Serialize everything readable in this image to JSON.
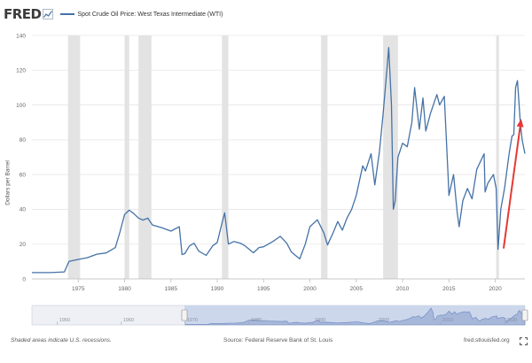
{
  "header": {
    "logo_text": "FRED",
    "legend_label": "Spot Crude Oil Price: West Texas Intermediate (WTI)",
    "series_color": "#4572a7"
  },
  "chart_data": {
    "type": "line",
    "title": "",
    "xlabel": "",
    "ylabel": "Dollars per Barrel",
    "xlim": [
      1970.0,
      2023.2
    ],
    "ylim": [
      0,
      140
    ],
    "y_ticks": [
      0,
      20,
      40,
      60,
      80,
      100,
      120,
      140
    ],
    "x_ticks": [
      1975,
      1980,
      1985,
      1990,
      1995,
      2000,
      2005,
      2010,
      2015,
      2020
    ],
    "grid": true,
    "recessions": [
      [
        1973.9,
        1975.2
      ],
      [
        1980.0,
        1980.5
      ],
      [
        1981.5,
        1982.9
      ],
      [
        1990.5,
        1991.2
      ],
      [
        2001.2,
        2001.9
      ],
      [
        2007.9,
        2009.5
      ],
      [
        2020.1,
        2020.4
      ]
    ],
    "series": [
      {
        "name": "Spot Crude Oil Price: West Texas Intermediate (WTI)",
        "color": "#4572a7",
        "x": [
          1970.0,
          1971.0,
          1972.0,
          1973.5,
          1974.0,
          1975.0,
          1976.0,
          1977.0,
          1978.0,
          1979.0,
          1979.5,
          1980.0,
          1980.5,
          1981.0,
          1981.5,
          1982.0,
          1982.5,
          1983.0,
          1984.0,
          1985.0,
          1985.9,
          1986.2,
          1986.5,
          1987.0,
          1987.5,
          1988.0,
          1988.8,
          1989.5,
          1990.0,
          1990.6,
          1990.8,
          1991.2,
          1991.8,
          1992.5,
          1993.0,
          1993.9,
          1994.5,
          1995.0,
          1996.0,
          1996.8,
          1997.5,
          1998.0,
          1998.9,
          1999.5,
          2000.0,
          2000.8,
          2001.5,
          2001.9,
          2002.5,
          2003.0,
          2003.5,
          2004.0,
          2004.5,
          2005.0,
          2005.7,
          2006.0,
          2006.6,
          2007.0,
          2007.5,
          2007.9,
          2008.3,
          2008.5,
          2008.8,
          2009.0,
          2009.2,
          2009.5,
          2010.0,
          2010.5,
          2011.0,
          2011.3,
          2011.8,
          2012.2,
          2012.5,
          2013.0,
          2013.7,
          2014.0,
          2014.5,
          2014.9,
          2015.0,
          2015.5,
          2015.9,
          2016.1,
          2016.5,
          2017.0,
          2017.5,
          2018.0,
          2018.8,
          2018.9,
          2019.2,
          2019.8,
          2020.1,
          2020.3,
          2020.6,
          2021.0,
          2021.5,
          2021.8,
          2022.0,
          2022.2,
          2022.4,
          2022.7,
          2022.9,
          2023.2
        ],
        "values": [
          3.6,
          3.6,
          3.6,
          4.0,
          10.1,
          11.2,
          12.2,
          14.2,
          14.9,
          18.0,
          27.0,
          37.0,
          39.5,
          37.5,
          35.0,
          33.8,
          35.0,
          31.0,
          29.5,
          27.5,
          30.0,
          14.0,
          14.5,
          19.0,
          20.5,
          16.0,
          13.5,
          19.0,
          21.0,
          34.0,
          38.0,
          20.0,
          21.5,
          20.5,
          19.0,
          15.0,
          18.0,
          18.5,
          21.5,
          24.5,
          20.5,
          15.5,
          11.5,
          20.0,
          30.0,
          34.0,
          26.5,
          19.5,
          26.5,
          33.0,
          28.0,
          35.0,
          40.0,
          48.0,
          65.0,
          62.0,
          72.0,
          54.0,
          73.0,
          95.0,
          120.0,
          133.0,
          100.0,
          40.0,
          45.0,
          70.0,
          78.0,
          76.0,
          90.0,
          110.0,
          86.0,
          104.0,
          85.0,
          95.0,
          106.0,
          100.0,
          105.0,
          60.0,
          48.0,
          60.0,
          38.0,
          30.0,
          45.0,
          52.0,
          46.0,
          63.0,
          72.0,
          50.0,
          55.0,
          60.0,
          52.0,
          17.0,
          40.0,
          52.0,
          72.0,
          82.0,
          83.0,
          110.0,
          114.0,
          90.0,
          80.0,
          72.0
        ]
      }
    ],
    "annotations": [
      {
        "type": "arrow",
        "color": "#e53935",
        "from": [
          2020.9,
          17.5
        ],
        "to": [
          2022.8,
          92.0
        ]
      }
    ]
  },
  "navigator": {
    "tick_labels": [
      "1950",
      "1960",
      "1970",
      "1980",
      "1990",
      "2000",
      "2010",
      "2020"
    ]
  },
  "footer": {
    "recession_note": "Shaded areas indicate U.S. recessions.",
    "source": "Source: Federal Reserve Bank of St. Louis",
    "site": "fred.stlouisfed.org"
  },
  "icons": {
    "logo_graph": "line-graph-icon",
    "fullscreen": "fullscreen-icon"
  }
}
